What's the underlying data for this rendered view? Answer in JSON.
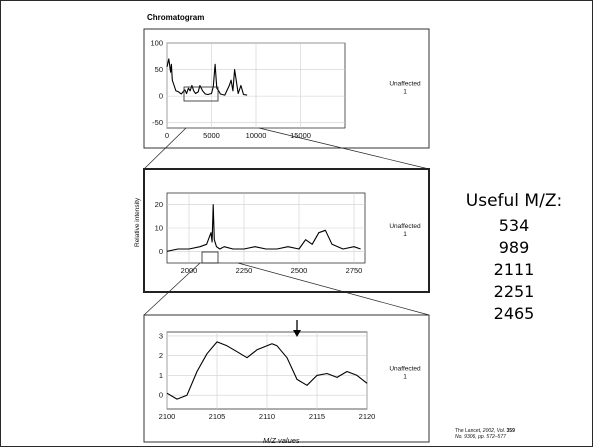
{
  "figure": {
    "title": "Chromatogram",
    "ylabel": "Relative intensity",
    "xlabel": "M/Z values"
  },
  "useful": {
    "heading": "Useful M/Z:",
    "values": [
      "534",
      "989",
      "2111",
      "2251",
      "2465"
    ]
  },
  "citation": {
    "journal": "The Lancet,",
    "year": "2002,",
    "vol_label": "Vol.",
    "vol": "359",
    "issue": "No. 9306, pp. 572–577"
  },
  "chart_data": [
    {
      "type": "line",
      "xlim": [
        0,
        20000
      ],
      "ylim": [
        -60,
        100
      ],
      "xticks": [
        "0",
        "5000",
        "10000",
        "15000"
      ],
      "yticks": [
        "100",
        "50",
        "0",
        "-50"
      ],
      "series": [
        {
          "name": "Unaffected 1",
          "x": [
            0,
            200,
            400,
            500,
            600,
            800,
            1000,
            1300,
            1600,
            2000,
            2200,
            2400,
            2600,
            2800,
            3000,
            3200,
            3500,
            3700,
            4000,
            4300,
            4600,
            5000,
            5200,
            5400,
            5600,
            5800,
            6000,
            6200,
            6500,
            7000,
            7200,
            7400,
            7600,
            8000,
            8300,
            8600,
            9000
          ],
          "y": [
            55,
            70,
            45,
            60,
            30,
            20,
            10,
            8,
            4,
            12,
            5,
            15,
            10,
            20,
            10,
            5,
            8,
            20,
            10,
            4,
            3,
            5,
            18,
            60,
            15,
            10,
            4,
            3,
            2,
            20,
            30,
            10,
            50,
            5,
            20,
            3,
            2
          ]
        }
      ]
    },
    {
      "type": "line",
      "xlim": [
        1900,
        2800
      ],
      "ylim": [
        -5,
        25
      ],
      "xticks": [
        "2000",
        "2250",
        "2500",
        "2750"
      ],
      "yticks": [
        "20",
        "10",
        "0"
      ],
      "series": [
        {
          "name": "Unaffected 1",
          "x": [
            1900,
            1950,
            2000,
            2050,
            2080,
            2100,
            2105,
            2110,
            2115,
            2125,
            2140,
            2160,
            2200,
            2250,
            2300,
            2350,
            2400,
            2450,
            2500,
            2530,
            2560,
            2590,
            2620,
            2650,
            2700,
            2750,
            2780
          ],
          "y": [
            0,
            1,
            1,
            2,
            3,
            8,
            4,
            20,
            5,
            2,
            1,
            2,
            1,
            1,
            2,
            1,
            1,
            2,
            1,
            5,
            3,
            8,
            9,
            3,
            1,
            2,
            1
          ]
        }
      ]
    },
    {
      "type": "line",
      "xlim": [
        2100,
        2120
      ],
      "ylim": [
        -0.7,
        3.2
      ],
      "xticks": [
        "2100",
        "2105",
        "2110",
        "2115",
        "2120"
      ],
      "yticks": [
        "3",
        "2",
        "1",
        "0"
      ],
      "series": [
        {
          "name": "Unaffected 1",
          "x": [
            2100,
            2101,
            2102,
            2103,
            2104,
            2105,
            2106,
            2107,
            2108,
            2109,
            2110,
            2110.5,
            2111,
            2112,
            2113,
            2114,
            2115,
            2116,
            2117,
            2118,
            2119,
            2120
          ],
          "y": [
            0.1,
            -0.2,
            0,
            1.2,
            2.1,
            2.7,
            2.5,
            2.2,
            1.9,
            2.3,
            2.5,
            2.6,
            2.5,
            1.9,
            0.8,
            0.5,
            1.0,
            1.1,
            0.9,
            1.2,
            1.0,
            0.6
          ]
        }
      ]
    }
  ]
}
